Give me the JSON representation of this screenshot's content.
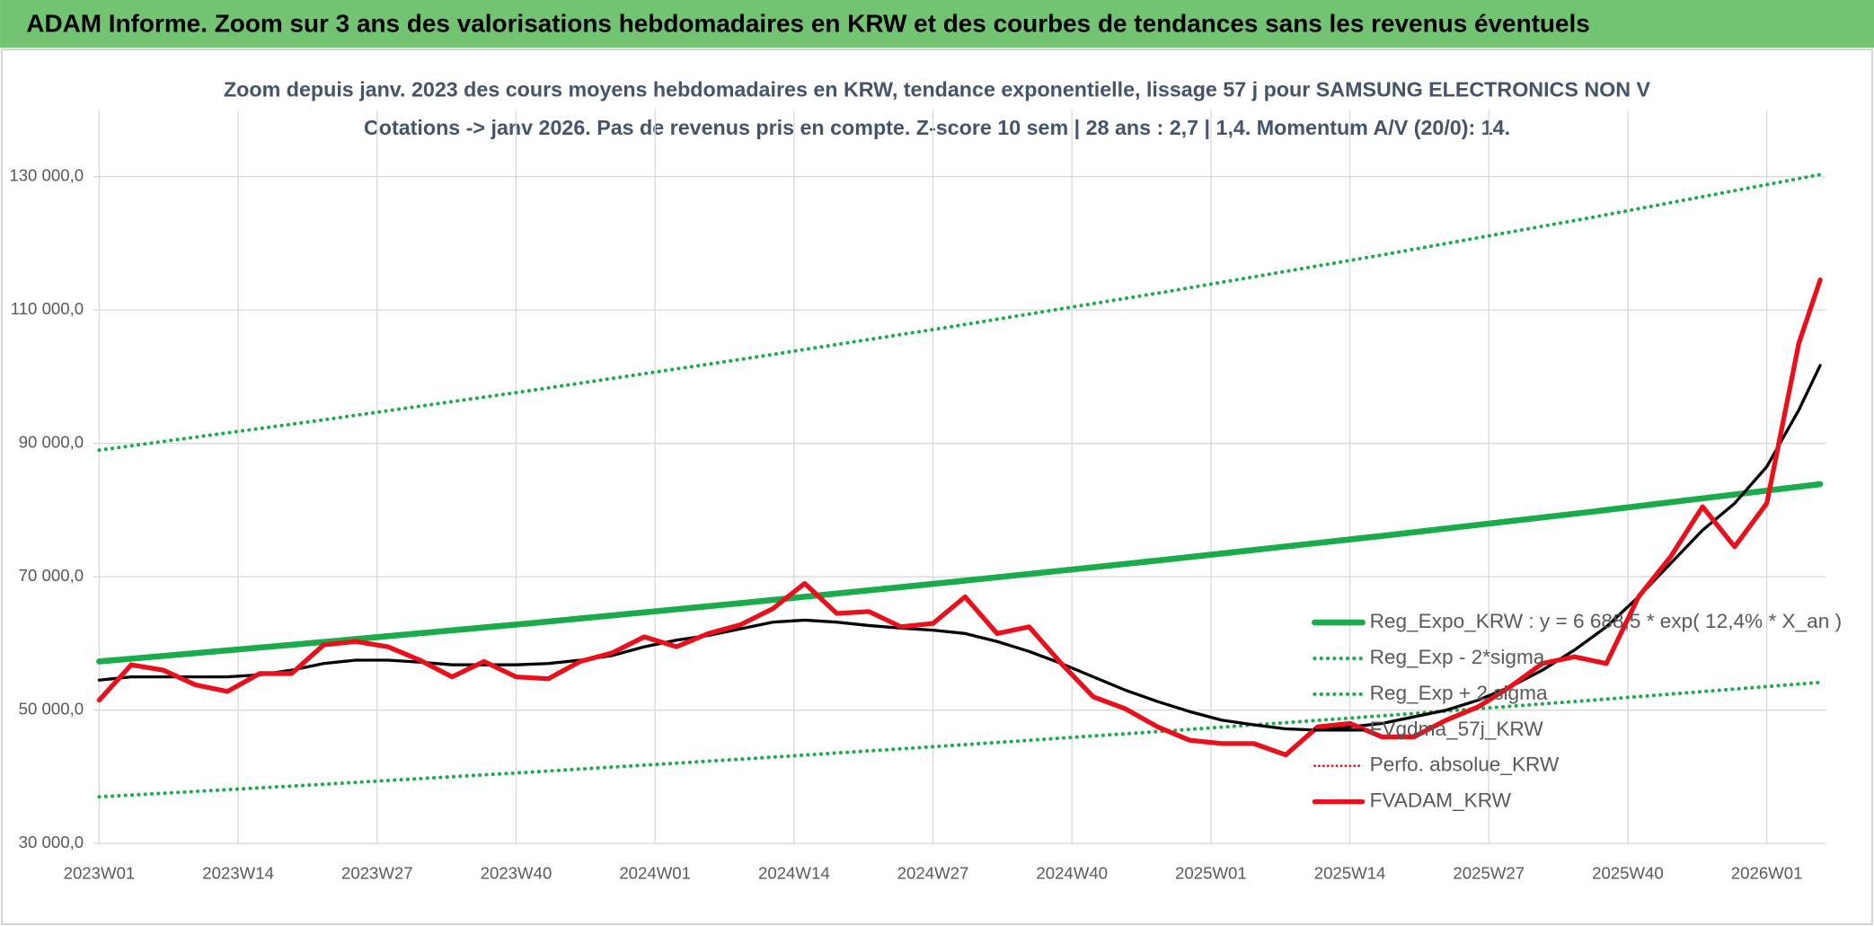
{
  "header": {
    "title": "ADAM Informe. Zoom sur 3 ans des valorisations hebdomadaires en KRW et des courbes de tendances sans les revenus éventuels"
  },
  "chart_data": {
    "type": "line",
    "title": "Zoom depuis janv. 2023 des cours moyens hebdomadaires en KRW, tendance exponentielle, lissage 57 j pour SAMSUNG ELECTRONICS NON V",
    "subtitle": "Cotations -> janv 2026. Pas de revenus pris en compte. Z-score 10 sem | 28 ans : 2,7 | 1,4. Momentum A/V (20/0): 14.",
    "x": [
      0,
      3,
      6,
      9,
      12,
      15,
      18,
      21,
      24,
      27,
      30,
      33,
      36,
      39,
      42,
      45,
      48,
      51,
      54,
      57,
      60,
      63,
      66,
      69,
      72,
      75,
      78,
      81,
      84,
      87,
      90,
      93,
      96,
      99,
      102,
      105,
      108,
      111,
      114,
      117,
      120,
      123,
      126,
      129,
      132,
      135,
      138,
      141,
      144,
      147,
      150,
      153,
      156,
      159,
      161
    ],
    "xlim": [
      0,
      161
    ],
    "xticks": [
      {
        "value": 0,
        "label": "2023W01"
      },
      {
        "value": 13,
        "label": "2023W14"
      },
      {
        "value": 26,
        "label": "2023W27"
      },
      {
        "value": 39,
        "label": "2023W40"
      },
      {
        "value": 52,
        "label": "2024W01"
      },
      {
        "value": 65,
        "label": "2024W14"
      },
      {
        "value": 78,
        "label": "2024W27"
      },
      {
        "value": 91,
        "label": "2024W40"
      },
      {
        "value": 104,
        "label": "2025W01"
      },
      {
        "value": 117,
        "label": "2025W14"
      },
      {
        "value": 130,
        "label": "2025W27"
      },
      {
        "value": 143,
        "label": "2025W40"
      },
      {
        "value": 156,
        "label": "2026W01"
      }
    ],
    "ylim": [
      30000,
      140000
    ],
    "yticks": [
      {
        "value": 30000,
        "label": "30 000,0"
      },
      {
        "value": 50000,
        "label": "50 000,0"
      },
      {
        "value": 70000,
        "label": "70 000,0"
      },
      {
        "value": 90000,
        "label": "90 000,0"
      },
      {
        "value": 110000,
        "label": "110 000,0"
      },
      {
        "value": 130000,
        "label": "130 000,0"
      }
    ],
    "grid": true,
    "legend": "right",
    "series": [
      {
        "name": "Reg_Expo_KRW : y = 6 688,5 * exp( 12,4% *  X_an )",
        "color": "#1aab4b",
        "width": 5,
        "dash": "solid",
        "x": [
          0,
          20,
          40,
          60,
          80,
          100,
          120,
          140,
          161
        ],
        "values": [
          57300,
          60080,
          62990,
          66050,
          69250,
          72610,
          76130,
          79820,
          83890
        ]
      },
      {
        "name": "Reg_Exp - 2*sigma",
        "color": "#1aab4b",
        "width": 3,
        "dash": "dotted",
        "x": [
          0,
          20,
          40,
          60,
          80,
          100,
          120,
          140,
          161
        ],
        "values": [
          37000,
          38790,
          40680,
          42650,
          44720,
          46890,
          49160,
          51540,
          54170
        ]
      },
      {
        "name": "Reg_Exp + 2 sigma",
        "color": "#1aab4b",
        "width": 3,
        "dash": "dotted",
        "x": [
          0,
          20,
          40,
          60,
          80,
          100,
          120,
          140,
          161
        ],
        "values": [
          89000,
          93320,
          97850,
          102590,
          107570,
          112780,
          118250,
          123990,
          130300
        ]
      },
      {
        "name": "FVgdma_57j_KRW",
        "color": "#000000",
        "width": 2.5,
        "dash": "solid",
        "values": [
          54500,
          55000,
          55000,
          55000,
          55000,
          55300,
          56000,
          57000,
          57500,
          57500,
          57200,
          56800,
          56800,
          56800,
          57000,
          57500,
          58200,
          59500,
          60500,
          61200,
          62200,
          63200,
          63500,
          63200,
          62700,
          62300,
          62000,
          61500,
          60300,
          58800,
          57000,
          55000,
          53000,
          51300,
          49800,
          48500,
          47800,
          47200,
          47000,
          47500,
          48000,
          49000,
          50000,
          51500,
          53500,
          56000,
          59000,
          62500,
          67000,
          72000,
          77000,
          81000,
          86500,
          95000,
          101700
        ]
      },
      {
        "name": "Perfo. absolue_KRW",
        "color": "#e8101a",
        "width": 2,
        "dash": "dotted",
        "x": [],
        "values": []
      },
      {
        "name": "FVADAM_KRW",
        "color": "#e8101a",
        "width": 4,
        "dash": "solid",
        "values": [
          51500,
          56800,
          56000,
          53800,
          52800,
          55500,
          55500,
          59800,
          60300,
          59500,
          57500,
          55000,
          57300,
          55000,
          54700,
          57300,
          58600,
          61000,
          59500,
          61500,
          62800,
          65200,
          69000,
          64500,
          64800,
          62500,
          63000,
          67000,
          61500,
          62500,
          57000,
          52000,
          50200,
          47500,
          45500,
          45000,
          45000,
          43300,
          47500,
          48000,
          46000,
          46000,
          48500,
          50500,
          53500,
          57000,
          58000,
          57000,
          67000,
          73000,
          80500,
          74500,
          81000,
          105000,
          114500
        ]
      }
    ]
  }
}
